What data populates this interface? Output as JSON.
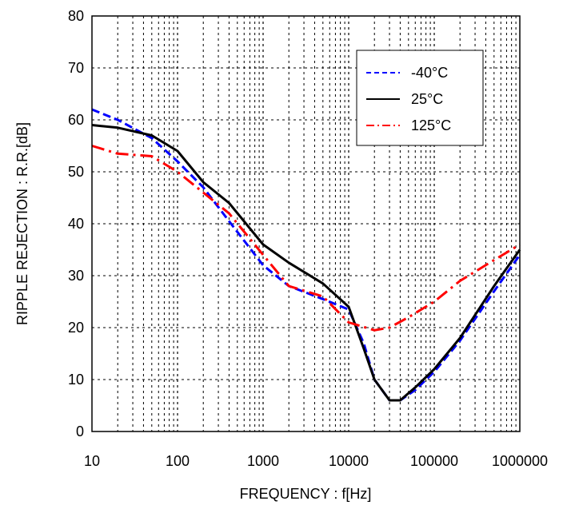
{
  "chart_data": {
    "type": "line",
    "xlabel": "FREQUENCY : f[Hz]",
    "ylabel": "RIPPLE REJECTION : R.R.[dB]",
    "x_scale": "log",
    "xlim": [
      10,
      1000000
    ],
    "ylim": [
      0,
      80
    ],
    "x_ticks": [
      "10",
      "100",
      "1000",
      "10000",
      "100000",
      "1000000"
    ],
    "y_ticks": [
      "0",
      "10",
      "20",
      "30",
      "40",
      "50",
      "60",
      "70",
      "80"
    ],
    "grid": true,
    "legend_position": "top-right",
    "series": [
      {
        "name": "-40°C",
        "color": "#0000ff",
        "style": "dashed",
        "x": [
          10,
          20,
          50,
          100,
          200,
          400,
          1000,
          2000,
          5000,
          10000,
          15000,
          20000,
          30000,
          40000,
          60000,
          100000,
          200000,
          500000,
          1000000
        ],
        "y": [
          62,
          60,
          56.5,
          52,
          47,
          40.5,
          32,
          28,
          25.5,
          23.5,
          17,
          10,
          6,
          6,
          8,
          11.5,
          17.5,
          27,
          34
        ]
      },
      {
        "name": "25°C",
        "color": "#000000",
        "style": "solid",
        "x": [
          10,
          20,
          50,
          100,
          200,
          400,
          1000,
          2000,
          5000,
          10000,
          15000,
          20000,
          30000,
          40000,
          60000,
          100000,
          200000,
          500000,
          1000000
        ],
        "y": [
          59,
          58.5,
          57,
          54,
          48,
          44,
          36,
          32.5,
          28.5,
          24,
          16,
          10,
          6,
          6,
          8.5,
          12,
          18,
          28,
          35
        ]
      },
      {
        "name": "125°C",
        "color": "#ff0000",
        "style": "dashdot",
        "x": [
          10,
          20,
          50,
          100,
          200,
          400,
          1000,
          2000,
          5000,
          10000,
          20000,
          30000,
          50000,
          100000,
          200000,
          500000,
          1000000
        ],
        "y": [
          55,
          53.5,
          53,
          50,
          46,
          42,
          34,
          28,
          26,
          21,
          19.5,
          20,
          22,
          25,
          29,
          33,
          36
        ]
      }
    ]
  }
}
